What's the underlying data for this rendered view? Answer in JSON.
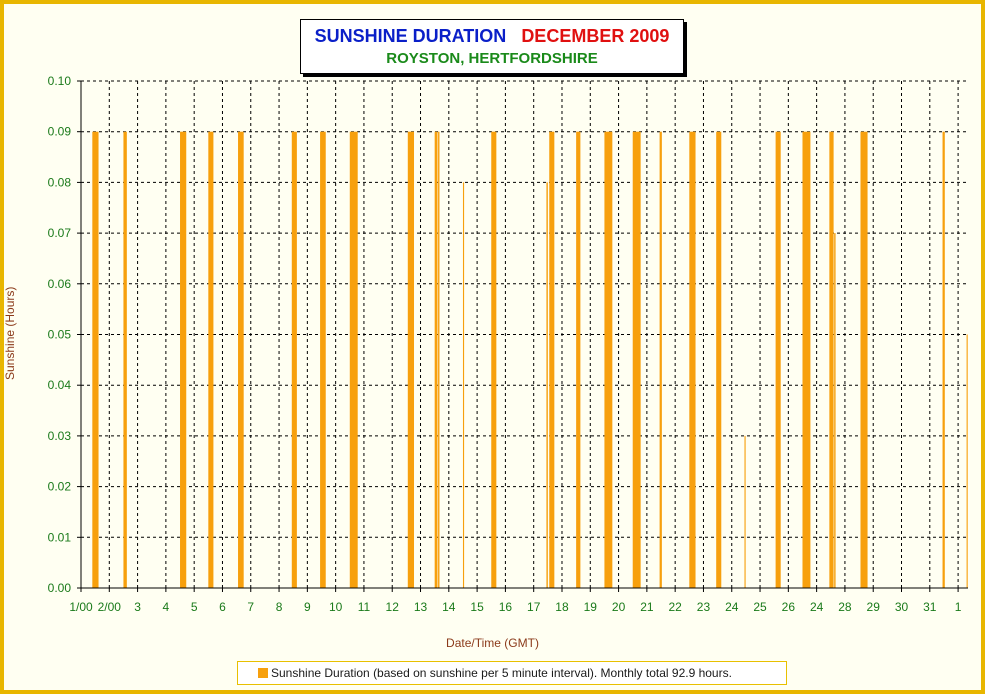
{
  "title": {
    "part_a": "SUNSHINE DURATION",
    "part_b": "DECEMBER 2009",
    "subtitle": "ROYSTON, HERTFORDSHIRE"
  },
  "legend": {
    "label": "Sunshine Duration (based on sunshine per 5 minute interval). Monthly total 92.9 hours."
  },
  "colors": {
    "background": "#fffff2",
    "border": "#e8b600",
    "bars": "#f7a00d",
    "ticks": "#1a7a1a",
    "axis_labels": "#8b3a1a"
  },
  "chart_data": {
    "type": "bar",
    "xlabel": "Date/Time (GMT)",
    "ylabel": "Sunshine (Hours)",
    "ylim": [
      0,
      0.1
    ],
    "xlim": [
      0,
      31.35
    ],
    "grid": true,
    "legend_position": "bottom",
    "y_ticks": [
      "0.00",
      "0.01",
      "0.02",
      "0.03",
      "0.04",
      "0.05",
      "0.06",
      "0.07",
      "0.08",
      "0.09",
      "0.10"
    ],
    "x_tick_labels": [
      "1/00",
      "2/00",
      "3",
      "4",
      "5",
      "6",
      "7",
      "8",
      "9",
      "10",
      "11",
      "12",
      "13",
      "14",
      "15",
      "16",
      "17",
      "18",
      "19",
      "20",
      "21",
      "22",
      "23",
      "24",
      "25",
      "26",
      "24",
      "28",
      "29",
      "30",
      "31",
      "1"
    ],
    "series": [
      {
        "name": "Sunshine Duration (based on sunshine per 5 minute interval). Monthly total 92.9 hours.",
        "bars": [
          {
            "x": 0.4,
            "width": 0.22,
            "value": 0.09
          },
          {
            "x": 1.5,
            "width": 0.12,
            "value": 0.09
          },
          {
            "x": 3.5,
            "width": 0.22,
            "value": 0.09
          },
          {
            "x": 4.5,
            "width": 0.18,
            "value": 0.09
          },
          {
            "x": 5.55,
            "width": 0.2,
            "value": 0.09
          },
          {
            "x": 7.45,
            "width": 0.18,
            "value": 0.09
          },
          {
            "x": 8.45,
            "width": 0.2,
            "value": 0.09
          },
          {
            "x": 9.5,
            "width": 0.28,
            "value": 0.09
          },
          {
            "x": 11.55,
            "width": 0.22,
            "value": 0.09
          },
          {
            "x": 12.5,
            "width": 0.1,
            "value": 0.09
          },
          {
            "x": 12.62,
            "width": 0.05,
            "value": 0.09
          },
          {
            "x": 13.5,
            "width": 0.04,
            "value": 0.08
          },
          {
            "x": 14.5,
            "width": 0.18,
            "value": 0.09
          },
          {
            "x": 16.45,
            "width": 0.05,
            "value": 0.08
          },
          {
            "x": 16.55,
            "width": 0.18,
            "value": 0.09
          },
          {
            "x": 17.5,
            "width": 0.15,
            "value": 0.09
          },
          {
            "x": 18.5,
            "width": 0.28,
            "value": 0.09
          },
          {
            "x": 19.5,
            "width": 0.28,
            "value": 0.09
          },
          {
            "x": 20.45,
            "width": 0.08,
            "value": 0.09
          },
          {
            "x": 21.5,
            "width": 0.22,
            "value": 0.09
          },
          {
            "x": 22.45,
            "width": 0.18,
            "value": 0.09
          },
          {
            "x": 23.45,
            "width": 0.04,
            "value": 0.03
          },
          {
            "x": 24.55,
            "width": 0.18,
            "value": 0.09
          },
          {
            "x": 25.5,
            "width": 0.28,
            "value": 0.09
          },
          {
            "x": 26.45,
            "width": 0.15,
            "value": 0.09
          },
          {
            "x": 26.62,
            "width": 0.05,
            "value": 0.07
          },
          {
            "x": 27.55,
            "width": 0.25,
            "value": 0.09
          },
          {
            "x": 30.45,
            "width": 0.08,
            "value": 0.09
          },
          {
            "x": 31.3,
            "width": 0.04,
            "value": 0.05
          }
        ]
      }
    ]
  }
}
